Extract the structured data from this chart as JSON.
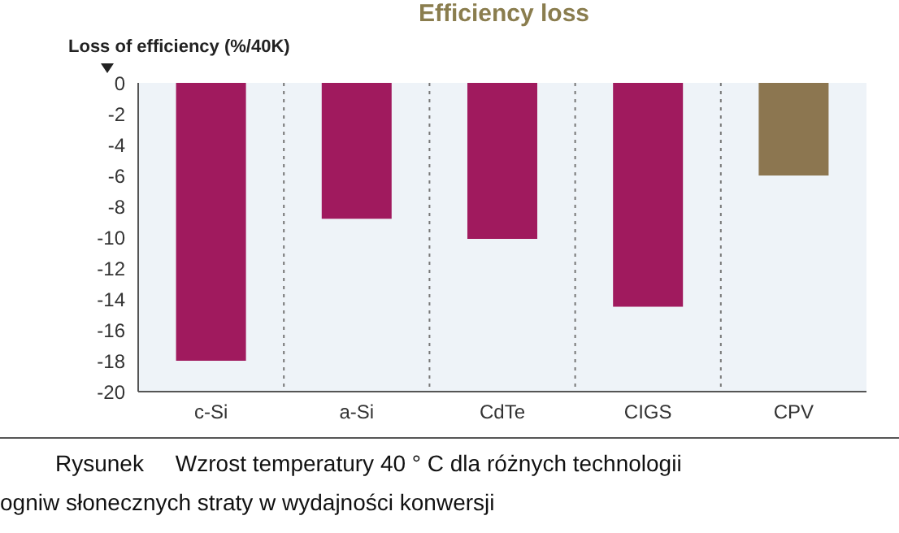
{
  "chart_data": {
    "type": "bar",
    "title": "Efficiency loss",
    "ylabel": "Loss of efficiency (%/40K)",
    "categories": [
      "c-Si",
      "a-Si",
      "CdTe",
      "CIGS",
      "CPV"
    ],
    "values": [
      -18,
      -8.8,
      -10.1,
      -14.5,
      -6
    ],
    "colors": [
      "#a01a5e",
      "#a01a5e",
      "#a01a5e",
      "#a01a5e",
      "#8c7650"
    ],
    "ylim": [
      -20,
      0
    ],
    "yticks": [
      0,
      -2,
      -4,
      -6,
      -8,
      -10,
      -12,
      -14,
      -16,
      -18,
      -20
    ],
    "grid": "x",
    "annotations": [
      "Rysunek     Wzrost temperatury 40 ° C dla różnych technologii",
      "ogniw słonecznych straty w wydajności konwersji"
    ]
  }
}
